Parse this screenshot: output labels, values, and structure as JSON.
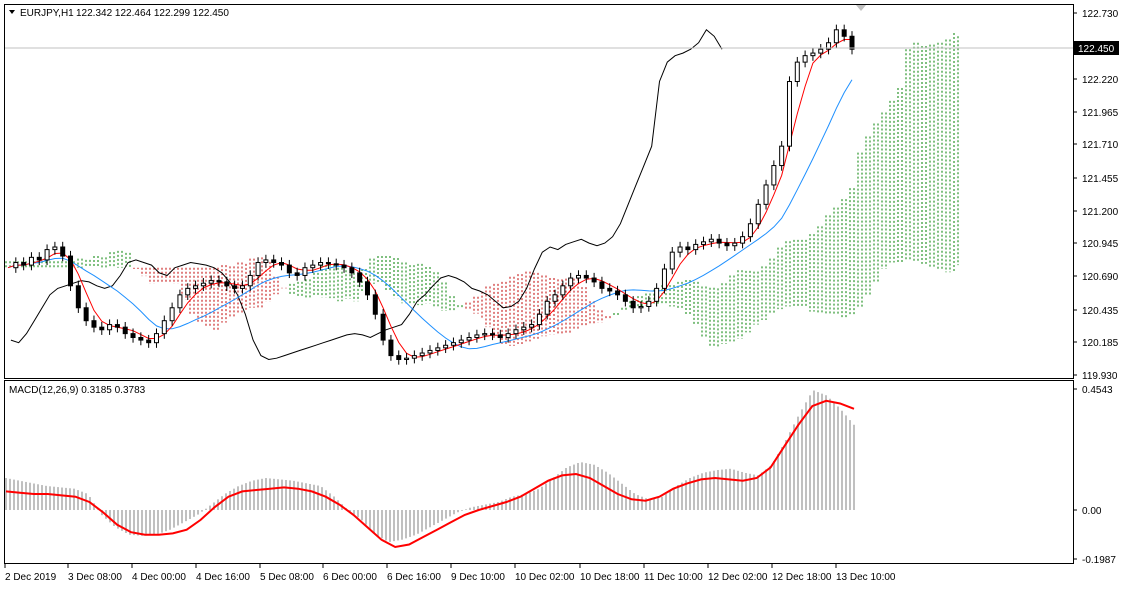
{
  "header": {
    "symbol": "EURJPY,H1",
    "ohlc": "122.342 122.464 122.299 122.450"
  },
  "macd_header": {
    "label": "MACD(12,26,9) 0.3185 0.3783"
  },
  "price_axis": {
    "ticks": [
      "122.730",
      "122.220",
      "121.965",
      "121.710",
      "121.455",
      "121.200",
      "120.945",
      "120.690",
      "120.435",
      "120.185",
      "119.930"
    ],
    "current_price": "122.450"
  },
  "macd_axis": {
    "ticks": [
      "0.4543",
      "0.00",
      "-0.1987"
    ]
  },
  "time_axis": {
    "labels": [
      "2 Dec 2019",
      "3 Dec 08:00",
      "4 Dec 00:00",
      "4 Dec 16:00",
      "5 Dec 08:00",
      "6 Dec 00:00",
      "6 Dec 16:00",
      "9 Dec 10:00",
      "10 Dec 02:00",
      "10 Dec 18:00",
      "11 Dec 10:00",
      "12 Dec 02:00",
      "12 Dec 18:00",
      "13 Dec 10:00"
    ]
  },
  "colors": {
    "tenkan": "#ff0000",
    "kijun": "#1e90ff",
    "chikou": "#000000",
    "cloud_bull": "#008000",
    "cloud_bear": "#c00000",
    "macd_hist": "#c0c0c0",
    "macd_signal": "#ff0000"
  },
  "chart_data": [
    {
      "type": "candlestick",
      "title": "EURJPY,H1",
      "ylim": [
        119.93,
        122.73
      ],
      "x_labels": [
        "2 Dec 2019",
        "3 Dec 08:00",
        "4 Dec 00:00",
        "4 Dec 16:00",
        "5 Dec 08:00",
        "6 Dec 00:00",
        "6 Dec 16:00",
        "9 Dec 10:00",
        "10 Dec 02:00",
        "10 Dec 18:00",
        "11 Dec 10:00",
        "12 Dec 02:00",
        "12 Dec 18:00",
        "13 Dec 10:00"
      ],
      "close_path": [
        120.76,
        120.8,
        120.78,
        120.84,
        120.82,
        120.9,
        120.92,
        120.85,
        120.62,
        120.45,
        120.35,
        120.3,
        120.28,
        120.32,
        120.3,
        120.25,
        120.22,
        120.2,
        120.18,
        120.25,
        120.35,
        120.45,
        120.55,
        120.6,
        120.62,
        120.64,
        120.66,
        120.65,
        120.62,
        120.6,
        120.62,
        120.7,
        120.8,
        120.82,
        120.8,
        120.78,
        120.72,
        120.7,
        120.76,
        120.78,
        120.8,
        120.79,
        120.78,
        120.76,
        120.72,
        120.65,
        120.55,
        120.4,
        120.2,
        120.08,
        120.05,
        120.06,
        120.08,
        120.1,
        120.12,
        120.14,
        120.16,
        120.18,
        120.2,
        120.22,
        120.24,
        120.25,
        120.24,
        120.22,
        120.25,
        120.28,
        120.3,
        120.32,
        120.4,
        120.5,
        120.55,
        120.62,
        120.68,
        120.7,
        120.68,
        120.65,
        120.6,
        120.58,
        120.55,
        120.5,
        120.45,
        120.46,
        120.5,
        120.6,
        120.75,
        120.88,
        120.92,
        120.9,
        120.94,
        120.96,
        120.98,
        120.95,
        120.93,
        120.95,
        121.0,
        121.1,
        121.25,
        121.4,
        121.55,
        121.7,
        122.2,
        122.35,
        122.4,
        122.42,
        122.45,
        122.5,
        122.6,
        122.55,
        122.45
      ],
      "series": [
        {
          "name": "Tenkan-sen"
        },
        {
          "name": "Kijun-sen"
        },
        {
          "name": "Chikou Span"
        },
        {
          "name": "Senkou Span A"
        },
        {
          "name": "Senkou Span B"
        }
      ]
    },
    {
      "type": "bar",
      "title": "MACD(12,26,9) 0.3185 0.3783",
      "ylim": [
        -0.1987,
        0.4543
      ],
      "main": 0.3185,
      "signal": 0.3783,
      "hist_path": [
        0.12,
        0.11,
        0.1,
        0.09,
        0.085,
        0.08,
        0.06,
        -0.02,
        -0.07,
        -0.1,
        -0.105,
        -0.1,
        -0.08,
        -0.05,
        -0.02,
        0.02,
        0.06,
        0.09,
        0.11,
        0.12,
        0.115,
        0.11,
        0.1,
        0.09,
        0.05,
        0.0,
        -0.04,
        -0.1,
        -0.13,
        -0.12,
        -0.1,
        -0.07,
        -0.04,
        -0.01,
        0.01,
        0.02,
        0.03,
        0.05,
        0.06,
        0.08,
        0.12,
        0.16,
        0.18,
        0.17,
        0.14,
        0.1,
        0.06,
        0.04,
        0.05,
        0.09,
        0.12,
        0.14,
        0.15,
        0.155,
        0.14,
        0.13,
        0.17,
        0.26,
        0.36,
        0.45,
        0.43,
        0.38,
        0.32
      ],
      "signal_path": [
        0.07,
        0.065,
        0.06,
        0.06,
        0.055,
        0.05,
        0.03,
        -0.01,
        -0.06,
        -0.09,
        -0.1,
        -0.1,
        -0.095,
        -0.08,
        -0.04,
        0.01,
        0.05,
        0.07,
        0.075,
        0.08,
        0.085,
        0.08,
        0.07,
        0.05,
        0.02,
        -0.02,
        -0.07,
        -0.12,
        -0.15,
        -0.14,
        -0.11,
        -0.08,
        -0.05,
        -0.02,
        0.0,
        0.015,
        0.03,
        0.05,
        0.08,
        0.11,
        0.13,
        0.135,
        0.12,
        0.09,
        0.06,
        0.04,
        0.035,
        0.05,
        0.08,
        0.1,
        0.115,
        0.12,
        0.115,
        0.11,
        0.12,
        0.16,
        0.24,
        0.32,
        0.39,
        0.41,
        0.4,
        0.38
      ]
    }
  ]
}
